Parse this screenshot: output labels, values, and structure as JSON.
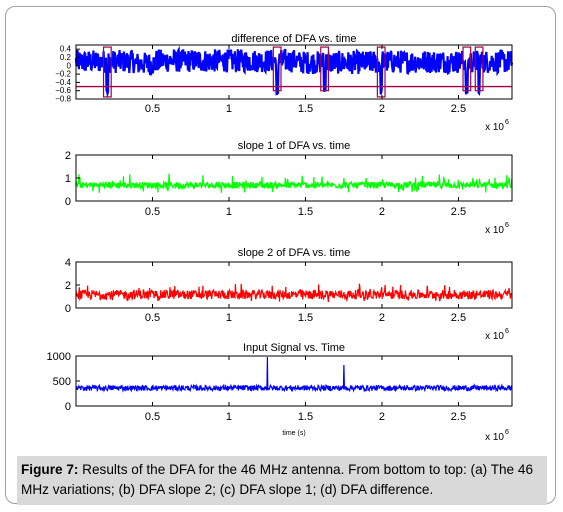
{
  "figure": {
    "caption_label": "Figure 7:",
    "caption_text": " Results of the DFA for the 46 MHz antenna. From bottom to top: (a) The 46 MHz variations; (b) DFA slope 2; (c) DFA slope 1; (d) DFA difference."
  },
  "chart_data": [
    {
      "type": "line",
      "title": "difference of DFA vs. time",
      "xlabel": "",
      "ylabel": "",
      "x_exponent_label": "x 10",
      "x_exponent": "6",
      "xlim": [
        0,
        2.85
      ],
      "ylim": [
        -0.8,
        0.5
      ],
      "xticks": [
        0.5,
        1,
        1.5,
        2,
        2.5
      ],
      "xtick_labels": [
        "0.5",
        "1",
        "1.5",
        "2",
        "2.5"
      ],
      "yticks": [
        0.4,
        0.2,
        0,
        -0.2,
        -0.4,
        -0.6,
        -0.8
      ],
      "ytick_labels": [
        "0.4",
        "0.2",
        "0",
        "−0.2",
        "−0.4",
        "−0.6",
        "−0.8"
      ],
      "line_color": "#0000ff",
      "reference_line": -0.5,
      "reference_color": "#a0004a",
      "series": [
        {
          "baseline": 0.1,
          "amplitude": 0.28,
          "segments": [
            {
              "x": [
                0.0,
                0.38
              ],
              "base": 0.1
            },
            {
              "x": [
                0.38,
                0.52
              ],
              "base": 0.05
            },
            {
              "x": [
                0.52,
                1.45
              ],
              "base": 0.12
            },
            {
              "x": [
                1.45,
                2.0
              ],
              "base": 0.08
            },
            {
              "x": [
                2.0,
                2.85
              ],
              "base": 0.1
            }
          ]
        }
      ],
      "highlight_boxes": [
        {
          "x": [
            0.18,
            0.23
          ],
          "y": [
            -0.75,
            0.45
          ]
        },
        {
          "x": [
            1.29,
            1.34
          ],
          "y": [
            -0.6,
            0.45
          ]
        },
        {
          "x": [
            1.6,
            1.65
          ],
          "y": [
            -0.6,
            0.45
          ]
        },
        {
          "x": [
            1.97,
            2.02
          ],
          "y": [
            -0.75,
            0.45
          ]
        },
        {
          "x": [
            2.53,
            2.58
          ],
          "y": [
            -0.6,
            0.45
          ]
        },
        {
          "x": [
            2.61,
            2.66
          ],
          "y": [
            -0.6,
            0.45
          ]
        }
      ],
      "dips": [
        0.205,
        1.315,
        1.625,
        1.995,
        2.555,
        2.635
      ]
    },
    {
      "type": "line",
      "title": "slope 1 of DFA vs. time",
      "xlabel": "",
      "ylabel": "",
      "x_exponent_label": "x 10",
      "x_exponent": "6",
      "xlim": [
        0,
        2.85
      ],
      "ylim": [
        0,
        2
      ],
      "xticks": [
        0.5,
        1,
        1.5,
        2,
        2.5
      ],
      "xtick_labels": [
        "0.5",
        "1",
        "1.5",
        "2",
        "2.5"
      ],
      "yticks": [
        2,
        1,
        0
      ],
      "ytick_labels": [
        "2",
        "1",
        "0"
      ],
      "line_color": "#00ff00",
      "series": [
        {
          "baseline": 0.65,
          "amplitude": 0.35
        }
      ]
    },
    {
      "type": "line",
      "title": "slope 2 of DFA vs. time",
      "xlabel": "",
      "ylabel": "",
      "x_exponent_label": "x 10",
      "x_exponent": "6",
      "xlim": [
        0,
        2.85
      ],
      "ylim": [
        0,
        4
      ],
      "xticks": [
        0.5,
        1,
        1.5,
        2,
        2.5
      ],
      "xtick_labels": [
        "0.5",
        "1",
        "1.5",
        "2",
        "2.5"
      ],
      "yticks": [
        4,
        2,
        0
      ],
      "ytick_labels": [
        "4",
        "2",
        "0"
      ],
      "line_color": "#ff0000",
      "series": [
        {
          "baseline": 1.0,
          "amplitude": 0.9
        }
      ]
    },
    {
      "type": "line",
      "title": "Input Signal vs. Time",
      "xlabel": "time (s)",
      "ylabel": "",
      "x_exponent_label": "x 10",
      "x_exponent": "6",
      "xlim": [
        0,
        2.85
      ],
      "ylim": [
        0,
        1000
      ],
      "xticks": [
        0.5,
        1,
        1.5,
        2,
        2.5
      ],
      "xtick_labels": [
        "0.5",
        "1",
        "1.5",
        "2",
        "2.5"
      ],
      "yticks": [
        1000,
        500,
        0
      ],
      "ytick_labels": [
        "1000",
        "500",
        "0"
      ],
      "line_color": "#0000ff",
      "series": [
        {
          "baseline": 360,
          "amplitude": 110
        }
      ],
      "spikes": [
        {
          "x": 1.25,
          "y": 980
        },
        {
          "x": 1.75,
          "y": 820
        }
      ]
    }
  ]
}
